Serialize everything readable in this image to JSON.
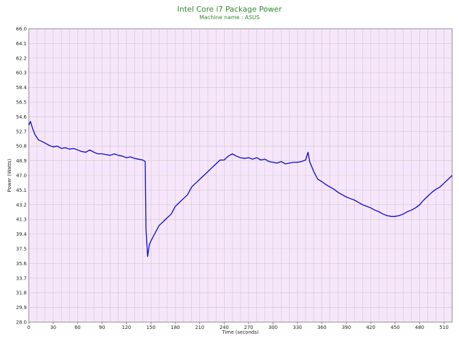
{
  "chart_data": {
    "type": "line",
    "title": "Intel Core i7 Package Power",
    "subtitle": "Machine name : ASUS",
    "xlabel": "Time (seconds)",
    "ylabel": "Power (Watts)",
    "xlim": [
      0,
      520
    ],
    "ylim": [
      28.0,
      66.0
    ],
    "x_ticks": [
      0,
      30,
      60,
      90,
      120,
      150,
      180,
      210,
      240,
      270,
      300,
      330,
      360,
      390,
      420,
      450,
      480,
      510
    ],
    "y_ticks": [
      "28.0",
      "29.9",
      "31.8",
      "33.7",
      "35.6",
      "37.5",
      "39.4",
      "41.3",
      "43.2",
      "45.1",
      "47.0",
      "48.9",
      "50.8",
      "52.7",
      "54.6",
      "56.5",
      "58.4",
      "60.3",
      "62.2",
      "64.1",
      "66.0"
    ],
    "grid": true,
    "plot_background": "#f7e6fb",
    "grid_color": "#c8c8c8",
    "line_color": "#0000cc",
    "title_color": "#2e8b2e",
    "series": [
      {
        "x": [
          0,
          2,
          5,
          8,
          12,
          18,
          25,
          30,
          35,
          40,
          45,
          50,
          55,
          60,
          65,
          70,
          75,
          80,
          85,
          90,
          95,
          100,
          105,
          110,
          115,
          120,
          125,
          130,
          135,
          140,
          143,
          144,
          146,
          148,
          150,
          155,
          160,
          165,
          170,
          175,
          180,
          185,
          190,
          195,
          200,
          205,
          210,
          215,
          220,
          225,
          230,
          235,
          240,
          245,
          250,
          255,
          260,
          265,
          270,
          275,
          280,
          285,
          290,
          295,
          300,
          305,
          310,
          315,
          320,
          325,
          330,
          335,
          340,
          343,
          345,
          350,
          355,
          360,
          365,
          370,
          375,
          380,
          385,
          390,
          395,
          400,
          405,
          410,
          415,
          420,
          425,
          430,
          435,
          440,
          445,
          450,
          455,
          460,
          465,
          470,
          475,
          480,
          485,
          490,
          495,
          500,
          505,
          510,
          515,
          520
        ],
        "y": [
          53.5,
          54.0,
          53.0,
          52.2,
          51.6,
          51.3,
          50.9,
          50.7,
          50.8,
          50.5,
          50.6,
          50.4,
          50.5,
          50.3,
          50.1,
          50.0,
          50.3,
          50.0,
          49.8,
          49.8,
          49.7,
          49.6,
          49.8,
          49.6,
          49.5,
          49.3,
          49.4,
          49.2,
          49.1,
          49.0,
          48.8,
          40.0,
          36.5,
          38.0,
          38.5,
          39.5,
          40.5,
          41.0,
          41.5,
          42.0,
          43.0,
          43.5,
          44.0,
          44.5,
          45.5,
          46.0,
          46.5,
          47.0,
          47.5,
          48.0,
          48.5,
          49.0,
          49.0,
          49.5,
          49.8,
          49.5,
          49.3,
          49.2,
          49.3,
          49.1,
          49.3,
          49.0,
          49.1,
          48.8,
          48.7,
          48.6,
          48.8,
          48.5,
          48.6,
          48.7,
          48.7,
          48.8,
          49.0,
          50.0,
          48.8,
          47.5,
          46.5,
          46.2,
          45.8,
          45.5,
          45.2,
          44.8,
          44.5,
          44.2,
          44.0,
          43.8,
          43.5,
          43.2,
          43.0,
          42.8,
          42.5,
          42.3,
          42.0,
          41.8,
          41.7,
          41.7,
          41.8,
          42.0,
          42.3,
          42.5,
          42.8,
          43.2,
          43.8,
          44.3,
          44.8,
          45.2,
          45.5,
          46.0,
          46.5,
          47.0
        ]
      }
    ]
  }
}
